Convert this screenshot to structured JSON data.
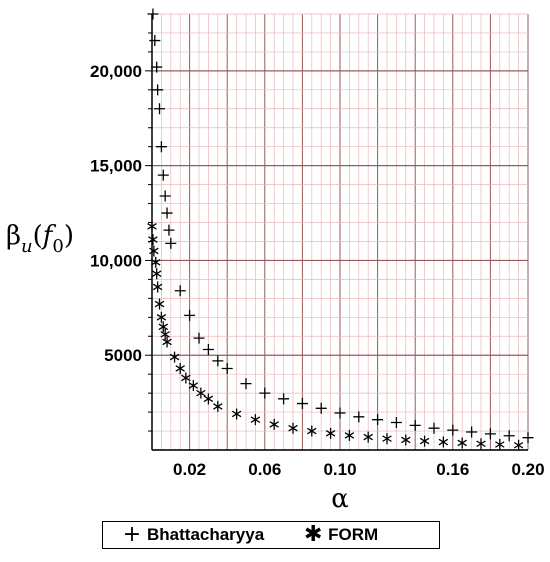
{
  "chart_data": {
    "type": "scatter",
    "xlabel": "α",
    "ylabel": {
      "base": "β",
      "sub1": "u",
      "paren_open": "(",
      "f": "f",
      "sub2": "0",
      "paren_close": ")"
    },
    "xlim": [
      0.0,
      0.2
    ],
    "ylim": [
      0,
      23000
    ],
    "x_ticks": [
      {
        "value": 0.02,
        "label": "0.02"
      },
      {
        "value": 0.06,
        "label": "0.06"
      },
      {
        "value": 0.1,
        "label": "0.10"
      },
      {
        "value": 0.16,
        "label": "0.16"
      },
      {
        "value": 0.2,
        "label": "0.20"
      }
    ],
    "y_ticks": [
      {
        "value": 5000,
        "label": "5000"
      },
      {
        "value": 10000,
        "label": "10,000"
      },
      {
        "value": 15000,
        "label": "15,000"
      },
      {
        "value": 20000,
        "label": "20,000"
      }
    ],
    "grid": true,
    "legend_position": "bottom",
    "colors": {
      "major_grid": "#9b5a5a",
      "minor_grid": "#e8b8b8",
      "axis": "#000000",
      "markers": "#000000"
    },
    "series": [
      {
        "name": "Bhattacharyya",
        "marker": "+",
        "points": [
          [
            0.0005,
            23000
          ],
          [
            0.0015,
            21600
          ],
          [
            0.0025,
            20200
          ],
          [
            0.003,
            19000
          ],
          [
            0.004,
            18000
          ],
          [
            0.005,
            16000
          ],
          [
            0.006,
            14500
          ],
          [
            0.007,
            13400
          ],
          [
            0.008,
            12500
          ],
          [
            0.009,
            11600
          ],
          [
            0.01,
            10900
          ],
          [
            0.015,
            8400
          ],
          [
            0.02,
            7100
          ],
          [
            0.025,
            5900
          ],
          [
            0.03,
            5300
          ],
          [
            0.035,
            4700
          ],
          [
            0.04,
            4300
          ],
          [
            0.05,
            3500
          ],
          [
            0.06,
            3000
          ],
          [
            0.07,
            2700
          ],
          [
            0.08,
            2450
          ],
          [
            0.09,
            2200
          ],
          [
            0.1,
            1950
          ],
          [
            0.11,
            1750
          ],
          [
            0.12,
            1600
          ],
          [
            0.13,
            1450
          ],
          [
            0.14,
            1300
          ],
          [
            0.15,
            1150
          ],
          [
            0.16,
            1050
          ],
          [
            0.17,
            950
          ],
          [
            0.18,
            850
          ],
          [
            0.19,
            750
          ],
          [
            0.2,
            650
          ]
        ]
      },
      {
        "name": "FORM",
        "marker": "*",
        "points": [
          [
            0.0,
            11800
          ],
          [
            0.0005,
            11100
          ],
          [
            0.001,
            10500
          ],
          [
            0.002,
            9900
          ],
          [
            0.0025,
            9300
          ],
          [
            0.003,
            8600
          ],
          [
            0.004,
            7700
          ],
          [
            0.005,
            7000
          ],
          [
            0.006,
            6500
          ],
          [
            0.007,
            6100
          ],
          [
            0.008,
            5700
          ],
          [
            0.012,
            4900
          ],
          [
            0.015,
            4300
          ],
          [
            0.018,
            3800
          ],
          [
            0.022,
            3400
          ],
          [
            0.026,
            3000
          ],
          [
            0.03,
            2700
          ],
          [
            0.035,
            2300
          ],
          [
            0.045,
            1900
          ],
          [
            0.055,
            1600
          ],
          [
            0.065,
            1350
          ],
          [
            0.075,
            1150
          ],
          [
            0.085,
            1000
          ],
          [
            0.095,
            880
          ],
          [
            0.105,
            770
          ],
          [
            0.115,
            680
          ],
          [
            0.125,
            600
          ],
          [
            0.135,
            530
          ],
          [
            0.145,
            470
          ],
          [
            0.155,
            420
          ],
          [
            0.165,
            370
          ],
          [
            0.175,
            330
          ],
          [
            0.185,
            290
          ],
          [
            0.195,
            250
          ]
        ]
      }
    ]
  },
  "legend": {
    "series_1": "Bhattacharyya",
    "series_2": "FORM"
  }
}
